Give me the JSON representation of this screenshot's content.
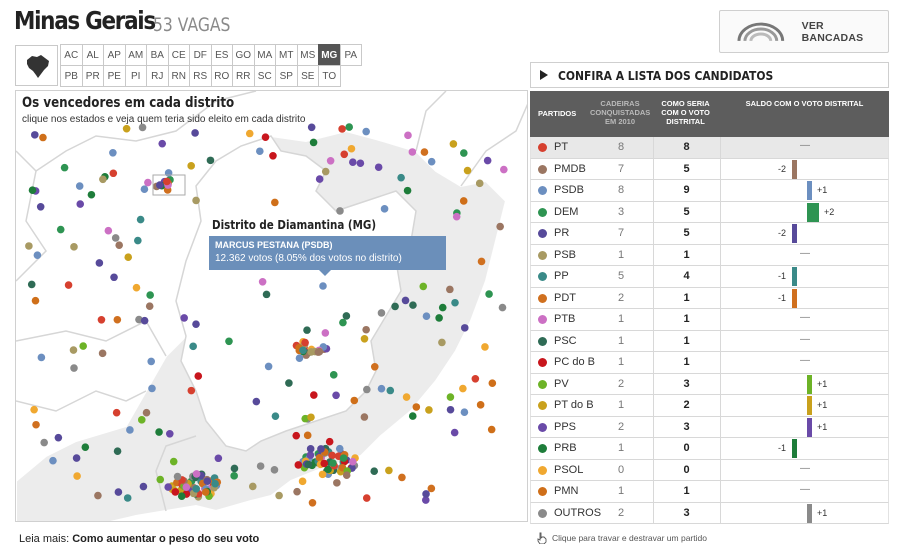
{
  "header": {
    "title": "Minas Gerais",
    "subtitle": "53 VAGAS"
  },
  "states": [
    "AC",
    "AL",
    "AP",
    "AM",
    "BA",
    "CE",
    "DF",
    "ES",
    "GO",
    "MA",
    "MT",
    "MS",
    "MG",
    "PA",
    "PB",
    "PR",
    "PE",
    "PI",
    "RJ",
    "RN",
    "RS",
    "RO",
    "RR",
    "SC",
    "SP",
    "SE",
    "TO"
  ],
  "active_state": "MG",
  "bancadas_button": "VER BANCADAS",
  "map": {
    "heading": "Os vencedores em cada distrito",
    "subheading": "clique nos estados e veja quem teria sido eleito em cada distrito",
    "district_label": "Distrito de Diamantina (MG)",
    "tooltip_name": "MARCUS PESTANA (PSDB)",
    "tooltip_votes": "12.362 votos (8.05% dos votos no distrito)"
  },
  "panel": {
    "header": "CONFIRA A LISTA DOS CANDIDATOS",
    "columns": {
      "partido": "PARTIDOS",
      "cadeiras": "CADEIRAS CONQUISTADAS EM 2010",
      "distrital": "COMO SERIA COM O VOTO DISTRITAL",
      "saldo": "SALDO COM O VOTO DISTRITAL"
    },
    "parties": [
      {
        "name": "PT",
        "color": "#d6402f",
        "cad": "8",
        "dist": "8",
        "saldo": "—",
        "delta": 0
      },
      {
        "name": "PMDB",
        "color": "#9b7662",
        "cad": "7",
        "dist": "5",
        "saldo": "-2",
        "delta": -2
      },
      {
        "name": "PSDB",
        "color": "#6c8fc0",
        "cad": "8",
        "dist": "9",
        "saldo": "+1",
        "delta": 1
      },
      {
        "name": "DEM",
        "color": "#2e9452",
        "cad": "3",
        "dist": "5",
        "saldo": "+2",
        "delta": 2
      },
      {
        "name": "PR",
        "color": "#574a9a",
        "cad": "7",
        "dist": "5",
        "saldo": "-2",
        "delta": -2
      },
      {
        "name": "PSB",
        "color": "#a89a63",
        "cad": "1",
        "dist": "1",
        "saldo": "—",
        "delta": 0
      },
      {
        "name": "PP",
        "color": "#3a8a88",
        "cad": "5",
        "dist": "4",
        "saldo": "-1",
        "delta": -1
      },
      {
        "name": "PDT",
        "color": "#d0701f",
        "cad": "2",
        "dist": "1",
        "saldo": "-1",
        "delta": -1
      },
      {
        "name": "PTB",
        "color": "#cc70c4",
        "cad": "1",
        "dist": "1",
        "saldo": "—",
        "delta": 0
      },
      {
        "name": "PSC",
        "color": "#2f6b55",
        "cad": "1",
        "dist": "1",
        "saldo": "—",
        "delta": 0
      },
      {
        "name": "PC do B",
        "color": "#c8161d",
        "cad": "1",
        "dist": "1",
        "saldo": "—",
        "delta": 0
      },
      {
        "name": "PV",
        "color": "#6db327",
        "cad": "2",
        "dist": "3",
        "saldo": "+1",
        "delta": 1
      },
      {
        "name": "PT do B",
        "color": "#c9a11d",
        "cad": "1",
        "dist": "2",
        "saldo": "+1",
        "delta": 1
      },
      {
        "name": "PPS",
        "color": "#6a4aa8",
        "cad": "2",
        "dist": "3",
        "saldo": "+1",
        "delta": 1
      },
      {
        "name": "PRB",
        "color": "#1e7d3a",
        "cad": "1",
        "dist": "0",
        "saldo": "-1",
        "delta": -1
      },
      {
        "name": "PSOL",
        "color": "#f0a830",
        "cad": "0",
        "dist": "0",
        "saldo": "—",
        "delta": 0
      },
      {
        "name": "PMN",
        "color": "#cf6f19",
        "cad": "1",
        "dist": "1",
        "saldo": "—",
        "delta": 0
      },
      {
        "name": "OUTROS",
        "color": "#8a8a8a",
        "cad": "2",
        "dist": "3",
        "saldo": "+1",
        "delta": 1
      }
    ]
  },
  "footer": {
    "leia_prefix": "Leia mais:",
    "leia_link": "Como aumentar o peso do seu voto",
    "hint": "Clique para travar e destravar um partido"
  }
}
